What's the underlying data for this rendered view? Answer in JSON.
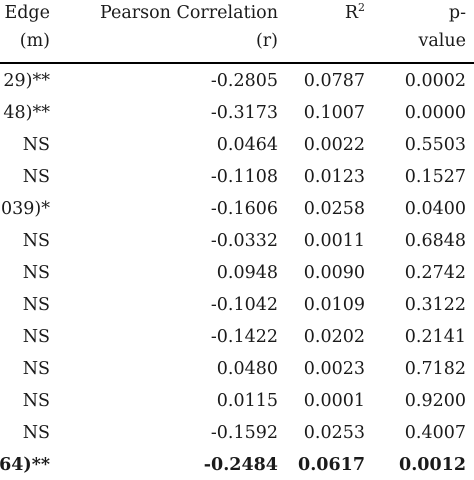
{
  "headers": {
    "edge_line1": "Edge",
    "edge_line2": "(m)",
    "r_line1": "Pearson Correlation",
    "r_line2": "(r)",
    "r2_base": "R",
    "r2_sup": "2",
    "p_line1": "p-",
    "p_line2": "value"
  },
  "rows": [
    {
      "edge": "29)**",
      "r": "-0.2805",
      "r2": "0.0787",
      "p": "0.0002",
      "bold": false
    },
    {
      "edge": "48)**",
      "r": "-0.3173",
      "r2": "0.1007",
      "p": "0.0000",
      "bold": false
    },
    {
      "edge": "NS",
      "r": "0.0464",
      "r2": "0.0022",
      "p": "0.5503",
      "bold": false
    },
    {
      "edge": "NS",
      "r": "-0.1108",
      "r2": "0.0123",
      "p": "0.1527",
      "bold": false
    },
    {
      "edge": "039)*",
      "r": "-0.1606",
      "r2": "0.0258",
      "p": "0.0400",
      "bold": false
    },
    {
      "edge": "NS",
      "r": "-0.0332",
      "r2": "0.0011",
      "p": "0.6848",
      "bold": false
    },
    {
      "edge": "NS",
      "r": "0.0948",
      "r2": "0.0090",
      "p": "0.2742",
      "bold": false
    },
    {
      "edge": "NS",
      "r": "-0.1042",
      "r2": "0.0109",
      "p": "0.3122",
      "bold": false
    },
    {
      "edge": "NS",
      "r": "-0.1422",
      "r2": "0.0202",
      "p": "0.2141",
      "bold": false
    },
    {
      "edge": "NS",
      "r": "0.0480",
      "r2": "0.0023",
      "p": "0.7182",
      "bold": false
    },
    {
      "edge": "NS",
      "r": "0.0115",
      "r2": "0.0001",
      "p": "0.9200",
      "bold": false
    },
    {
      "edge": "NS",
      "r": "-0.1592",
      "r2": "0.0253",
      "p": "0.4007",
      "bold": false
    },
    {
      "edge": "64)**",
      "r": "-0.2484",
      "r2": "0.0617",
      "p": "0.0012",
      "bold": true
    }
  ]
}
